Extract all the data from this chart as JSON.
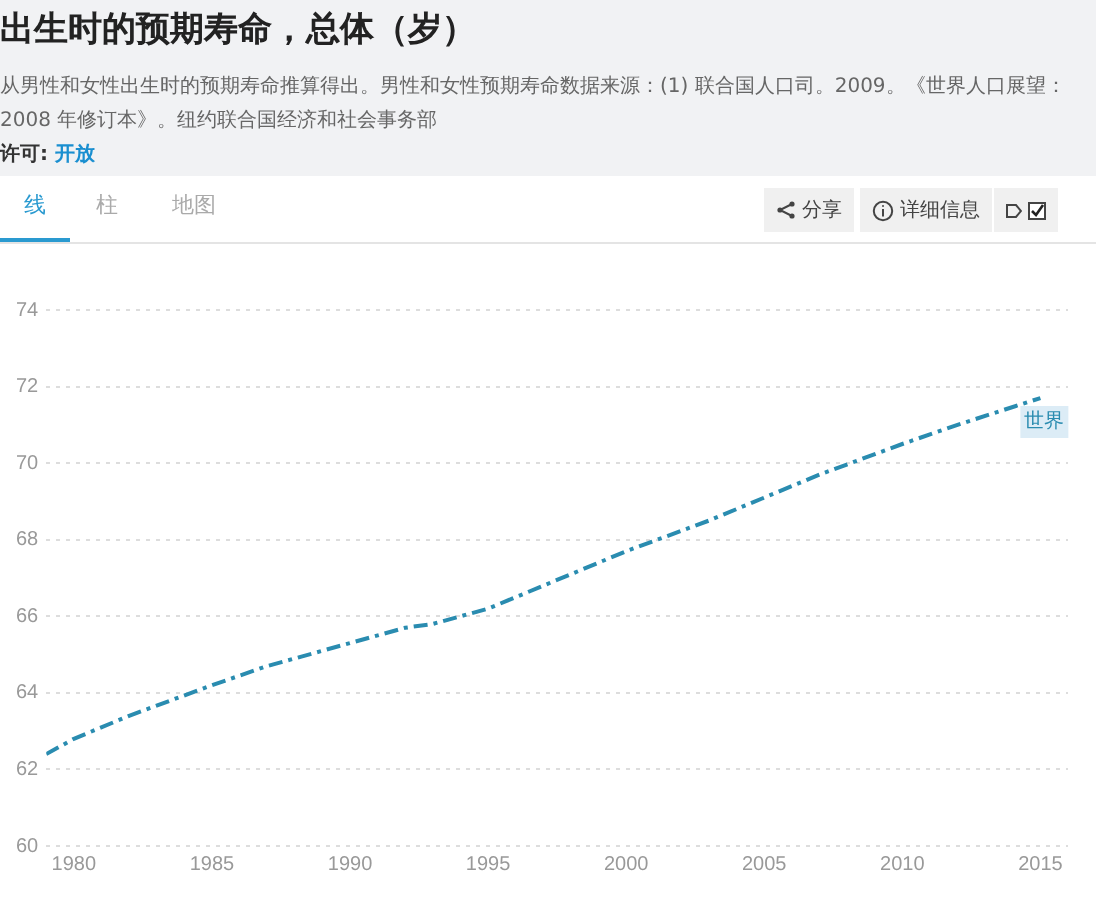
{
  "chart_data": {
    "type": "line",
    "title": "出生时的预期寿命，总体（岁）",
    "subtitle": "从男性和女性出生时的预期寿命推算得出。男性和女性预期寿命数据来源：(1) 联合国人口司。2009。《世界人口展望：2008 年修订本》。纽约联合国经济和社会事务部",
    "annotations": [
      "许可: 开放",
      "线",
      "柱",
      "地图",
      "分享",
      "详细信息"
    ],
    "x": [
      1979,
      1980,
      1982,
      1985,
      1987,
      1990,
      1992,
      1993,
      1995,
      1997,
      2000,
      2003,
      2005,
      2007,
      2010,
      2012,
      2015
    ],
    "series": [
      {
        "name": "世界",
        "color": "#2a8cb0",
        "values": [
          62.4,
          62.8,
          63.4,
          64.2,
          64.7,
          65.3,
          65.7,
          65.8,
          66.2,
          66.8,
          67.7,
          68.5,
          69.1,
          69.7,
          70.5,
          71.0,
          71.7
        ]
      }
    ],
    "xlim": [
      1979,
      2016
    ],
    "xticks": [
      1980,
      1985,
      1990,
      1995,
      2000,
      2005,
      2010,
      2015
    ],
    "ylim": [
      60,
      74
    ],
    "yticks": [
      60,
      62,
      64,
      66,
      68,
      70,
      72,
      74
    ],
    "grid": "y",
    "legend": false,
    "marker": "none",
    "line_style": "dashed"
  }
}
